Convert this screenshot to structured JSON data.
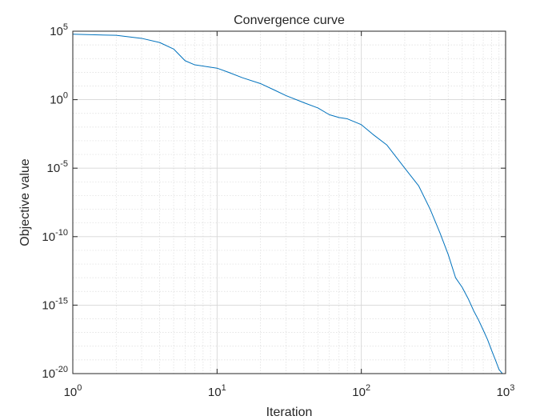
{
  "chart_data": {
    "type": "line",
    "title": "Convergence curve",
    "xlabel": "Iteration",
    "ylabel": "Objective value",
    "x_scale": "log",
    "y_scale": "log",
    "xlim": [
      1,
      1000
    ],
    "ylim": [
      1e-20,
      100000
    ],
    "grid": true,
    "minor_grid": true,
    "x_ticks": [
      {
        "value": 1,
        "base": "10",
        "exp": "0"
      },
      {
        "value": 10,
        "base": "10",
        "exp": "1"
      },
      {
        "value": 100,
        "base": "10",
        "exp": "2"
      },
      {
        "value": 1000,
        "base": "10",
        "exp": "3"
      }
    ],
    "y_ticks": [
      {
        "value": 1e-20,
        "base": "10",
        "exp": "-20"
      },
      {
        "value": 1e-15,
        "base": "10",
        "exp": "-15"
      },
      {
        "value": 1e-10,
        "base": "10",
        "exp": "-10"
      },
      {
        "value": 1e-05,
        "base": "10",
        "exp": "-5"
      },
      {
        "value": 1,
        "base": "10",
        "exp": "0"
      },
      {
        "value": 100000,
        "base": "10",
        "exp": "5"
      }
    ],
    "series": [
      {
        "color": "#0072BD",
        "x": [
          1,
          2,
          3,
          4,
          5,
          6,
          7,
          10,
          12,
          15,
          20,
          25,
          30,
          40,
          50,
          60,
          70,
          80,
          100,
          120,
          150,
          200,
          250,
          300,
          350,
          400,
          450,
          500,
          550,
          600,
          650,
          700,
          750,
          800,
          850,
          900,
          950,
          1000
        ],
        "y": [
          60000,
          50000,
          30000,
          15000,
          5000,
          700,
          350,
          200,
          100,
          40,
          15,
          5,
          2,
          0.6,
          0.25,
          0.08,
          0.05,
          0.04,
          0.015,
          0.003,
          0.0005,
          1e-05,
          5e-07,
          1e-08,
          2e-10,
          5e-12,
          1e-13,
          2e-14,
          3e-15,
          4e-16,
          8e-17,
          1.5e-17,
          3e-18,
          5e-19,
          1e-19,
          2e-20,
          4e-21,
          8e-22
        ]
      }
    ]
  }
}
